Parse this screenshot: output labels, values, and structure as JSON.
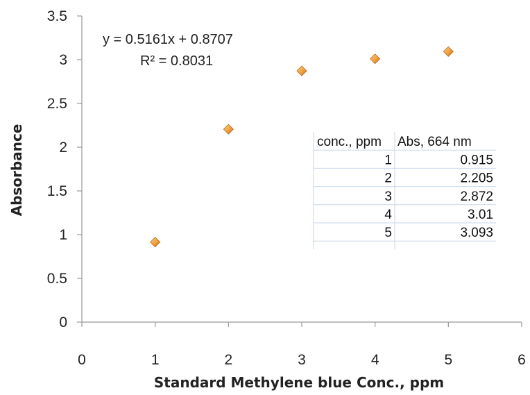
{
  "chart_data": {
    "type": "scatter",
    "xlabel": "Standard Methylene blue Conc., ppm",
    "ylabel": "Absorbance",
    "xlim": [
      0,
      6
    ],
    "ylim": [
      0,
      3.5
    ],
    "xticks": [
      "0",
      "1",
      "2",
      "3",
      "4",
      "5",
      "6"
    ],
    "yticks": [
      "0",
      "0.5",
      "1",
      "1.5",
      "2",
      "2.5",
      "3",
      "3.5"
    ],
    "grid": false,
    "marker": "diamond",
    "marker_color": "#f0a040",
    "x": [
      1,
      2,
      3,
      4,
      5
    ],
    "y": [
      0.915,
      2.205,
      2.872,
      3.01,
      3.093
    ],
    "trendline": {
      "equation": "y = 0.5161x + 0.8707",
      "r_squared": "R² = 0.8031"
    },
    "table": {
      "headers": [
        "conc., ppm",
        "Abs, 664 nm"
      ],
      "rows": [
        [
          "1",
          "0.915"
        ],
        [
          "2",
          "2.205"
        ],
        [
          "3",
          "2.872"
        ],
        [
          "4",
          "3.01"
        ],
        [
          "5",
          "3.093"
        ]
      ]
    }
  }
}
